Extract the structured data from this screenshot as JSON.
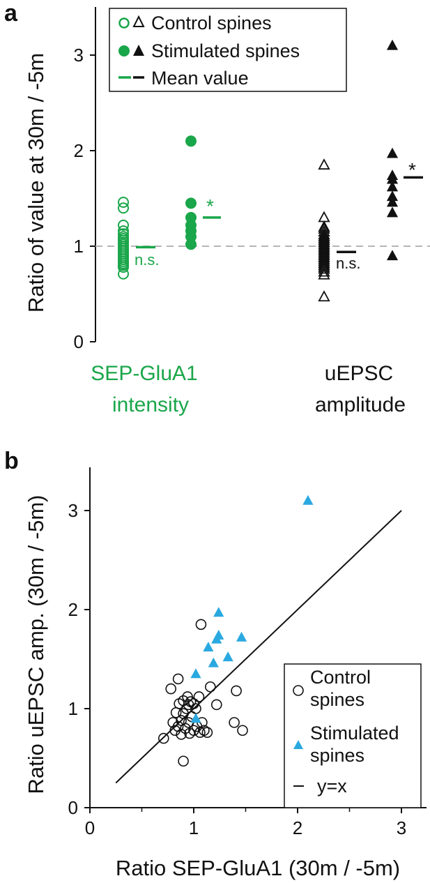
{
  "panels": {
    "a": "a",
    "b": "b"
  },
  "colors": {
    "green": "#1aa64a",
    "black": "#111111",
    "blue": "#2aa9e0",
    "dashed": "#b5b5b5"
  },
  "chart_data": [
    {
      "panel": "a",
      "type": "scatter",
      "ylabel": "Ratio of value at 30m / -5m",
      "ylim": [
        0,
        3.5
      ],
      "yticks": [
        0,
        1,
        2,
        3
      ],
      "reference_line_y": 1,
      "groups": [
        {
          "name_lines": [
            "SEP-GluA1",
            "intensity"
          ],
          "color": "#1aa64a",
          "marker": "circle",
          "control": [
            0.71,
            0.78,
            0.8,
            0.82,
            0.84,
            0.86,
            0.88,
            0.9,
            0.92,
            0.94,
            0.96,
            0.98,
            1.0,
            1.02,
            1.04,
            1.06,
            1.08,
            1.1,
            1.13,
            1.16,
            1.22,
            1.4,
            1.46
          ],
          "control_mean": 0.99,
          "control_label": "n.s.",
          "stimulated": [
            1.02,
            1.1,
            1.16,
            1.22,
            1.3,
            1.45,
            2.1
          ],
          "stimulated_mean": 1.3,
          "stimulated_label": "*"
        },
        {
          "name_lines": [
            "uEPSC",
            "amplitude"
          ],
          "color": "#111111",
          "marker": "triangle",
          "control": [
            0.47,
            0.7,
            0.73,
            0.76,
            0.78,
            0.8,
            0.82,
            0.84,
            0.86,
            0.88,
            0.9,
            0.92,
            0.94,
            0.96,
            0.98,
            1.0,
            1.02,
            1.04,
            1.06,
            1.08,
            1.1,
            1.12,
            1.15,
            1.18,
            1.2,
            1.3,
            1.85
          ],
          "control_mean": 0.94,
          "control_label": "n.s.",
          "stimulated": [
            0.9,
            1.35,
            1.46,
            1.52,
            1.62,
            1.7,
            1.74,
            1.97,
            3.1
          ],
          "stimulated_mean": 1.72,
          "stimulated_label": "*"
        }
      ],
      "legend": {
        "placement": "top-center",
        "entries": [
          "Control spines",
          "Stimulated spines",
          "Mean value"
        ]
      }
    },
    {
      "panel": "b",
      "type": "scatter",
      "xlabel": "Ratio SEP-GluA1 (30m / -5m)",
      "ylabel": "Ratio uEPSC amp. (30m / -5m)",
      "xlim": [
        0,
        3.25
      ],
      "ylim": [
        0,
        3.25
      ],
      "xticks": [
        0,
        1,
        2,
        3
      ],
      "yticks": [
        0,
        1,
        2,
        3
      ],
      "series": [
        {
          "name": "Control spines",
          "name_lines": [
            "Control",
            "spines"
          ],
          "marker": "open-circle",
          "color": "#111111",
          "points": [
            [
              0.71,
              0.7
            ],
            [
              0.9,
              0.47
            ],
            [
              0.78,
              1.2
            ],
            [
              0.85,
              1.3
            ],
            [
              1.07,
              1.85
            ],
            [
              1.16,
              1.22
            ],
            [
              1.41,
              1.18
            ],
            [
              1.39,
              0.86
            ],
            [
              1.47,
              0.78
            ],
            [
              1.22,
              1.04
            ],
            [
              0.82,
              0.78
            ],
            [
              0.85,
              0.82
            ],
            [
              0.88,
              0.88
            ],
            [
              0.9,
              0.95
            ],
            [
              0.93,
              1.0
            ],
            [
              0.95,
              1.04
            ],
            [
              0.97,
              1.07
            ],
            [
              1.0,
              1.05
            ],
            [
              1.02,
              1.0
            ],
            [
              0.98,
              0.92
            ],
            [
              0.95,
              0.86
            ],
            [
              0.92,
              0.8
            ],
            [
              0.96,
              0.75
            ],
            [
              1.0,
              0.78
            ],
            [
              1.03,
              0.82
            ],
            [
              1.06,
              0.76
            ],
            [
              1.1,
              0.78
            ],
            [
              1.13,
              0.76
            ],
            [
              1.08,
              0.86
            ],
            [
              0.86,
              1.05
            ],
            [
              0.9,
              1.08
            ],
            [
              0.94,
              1.12
            ],
            [
              0.83,
              0.96
            ],
            [
              1.05,
              1.12
            ],
            [
              0.88,
              0.74
            ],
            [
              0.8,
              0.86
            ]
          ]
        },
        {
          "name": "Stimulated spines",
          "name_lines": [
            "Stimulated",
            "spines"
          ],
          "marker": "filled-triangle",
          "color": "#2aa9e0",
          "points": [
            [
              2.1,
              3.1
            ],
            [
              1.24,
              1.97
            ],
            [
              1.24,
              1.74
            ],
            [
              1.22,
              1.7
            ],
            [
              1.46,
              1.72
            ],
            [
              1.14,
              1.62
            ],
            [
              1.33,
              1.52
            ],
            [
              1.19,
              1.46
            ],
            [
              1.02,
              1.35
            ],
            [
              1.02,
              0.9
            ]
          ]
        },
        {
          "name": "y=x",
          "type": "line",
          "color": "#111111",
          "points": [
            [
              0.25,
              0.25
            ],
            [
              3.0,
              3.0
            ]
          ]
        }
      ],
      "legend": {
        "placement": "bottom-right",
        "entries": [
          "Control spines",
          "Stimulated spines",
          "y=x"
        ]
      }
    }
  ]
}
